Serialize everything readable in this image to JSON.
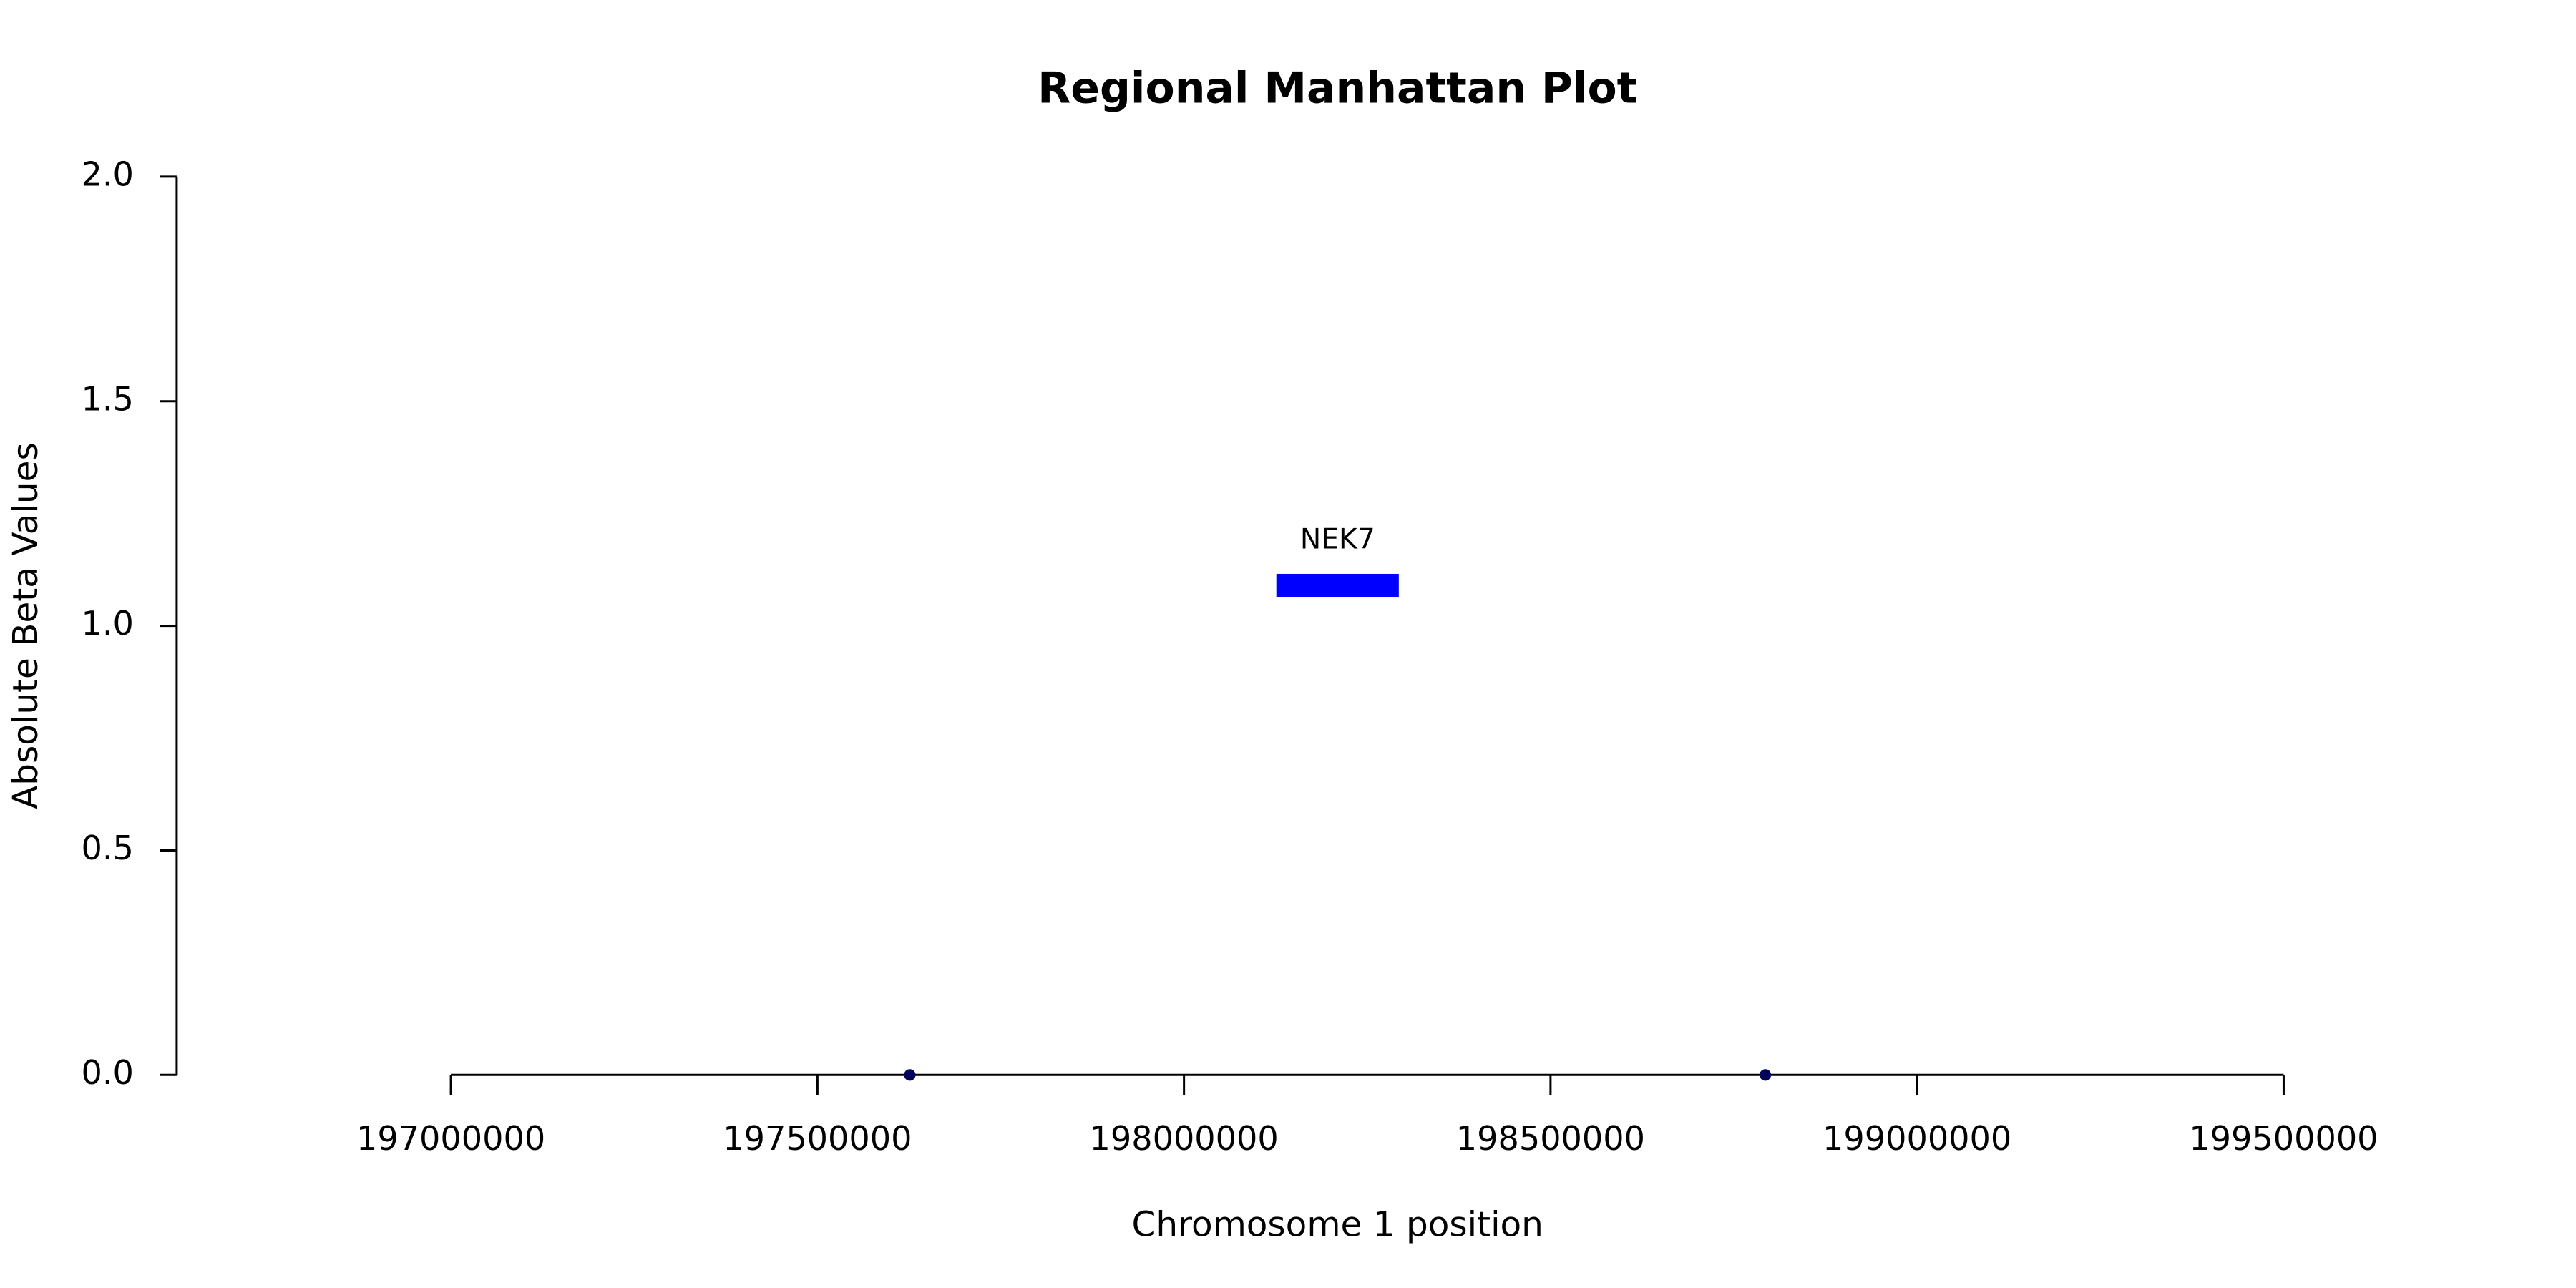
{
  "chart_data": {
    "type": "scatter",
    "title": "Regional Manhattan Plot",
    "x_label": "Chromosome 1 position",
    "y_label": "Absolute Beta Values",
    "x": [
      197626000,
      198793000
    ],
    "values": [
      0,
      0
    ],
    "color": "#00005a",
    "genes": [
      {
        "name": "NEK7",
        "start": 198126000,
        "end": 198293000,
        "y": 1.09,
        "color": "#0000ff"
      }
    ],
    "xlim": [
      196626000,
      199874000
    ],
    "xticks": [
      197000000,
      197500000,
      198000000,
      198500000,
      199000000,
      199500000
    ],
    "ylim": [
      0,
      2
    ],
    "yticks": [
      {
        "value": 0,
        "label": "0.0"
      },
      {
        "value": 0.5,
        "label": "0.5"
      },
      {
        "value": 1,
        "label": "1.0"
      },
      {
        "value": 1.5,
        "label": "1.5"
      },
      {
        "value": 2,
        "label": "2.0"
      }
    ],
    "grid": false
  }
}
